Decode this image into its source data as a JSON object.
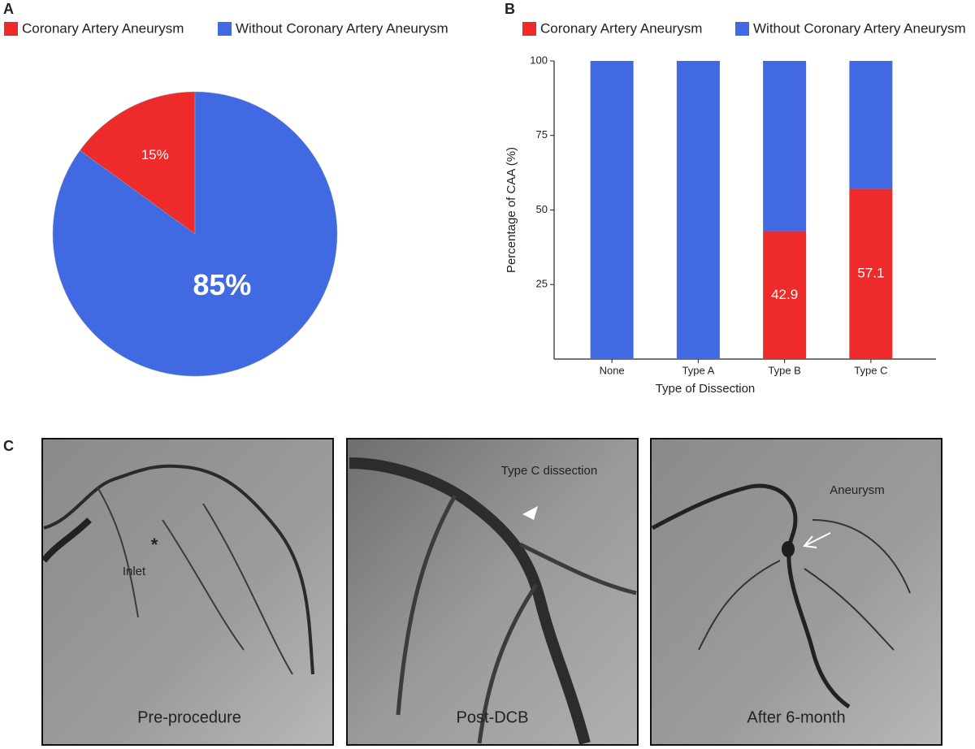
{
  "chart_data": [
    {
      "type": "pie",
      "panel": "A",
      "categories": [
        "Coronary Artery Aneurysm",
        "Without Coronary Artery Aneurysm"
      ],
      "values": [
        15,
        85
      ],
      "value_labels": [
        "15%",
        "85%"
      ],
      "colors": [
        "#ee2a2a",
        "#4169e1"
      ],
      "legend": "top"
    },
    {
      "type": "bar",
      "panel": "B",
      "stacked": true,
      "categories": [
        "None",
        "Type A",
        "Type B",
        "Type C"
      ],
      "series": [
        {
          "name": "Coronary Artery Aneurysm",
          "color": "#ee2a2a",
          "values": [
            0,
            0,
            42.9,
            57.1
          ]
        },
        {
          "name": "Without Coronary Artery Aneurysm",
          "color": "#4169e1",
          "values": [
            100,
            100,
            57.1,
            42.9
          ]
        }
      ],
      "ylim": [
        0,
        100
      ],
      "yticks": [
        25,
        50,
        75,
        100
      ],
      "ylabel": "Percentage of CAA (%)",
      "xlabel": "Type of Dissection",
      "legend": "top"
    }
  ],
  "figure": {
    "panel_c": "C",
    "images": [
      {
        "caption": "Pre-procedure",
        "annotations": [
          "*",
          "Inlet"
        ]
      },
      {
        "caption": "Post-DCB",
        "annotations": [
          "Type C dissection"
        ]
      },
      {
        "caption": "After 6-month",
        "annotations": [
          "Aneurysm"
        ]
      }
    ]
  }
}
